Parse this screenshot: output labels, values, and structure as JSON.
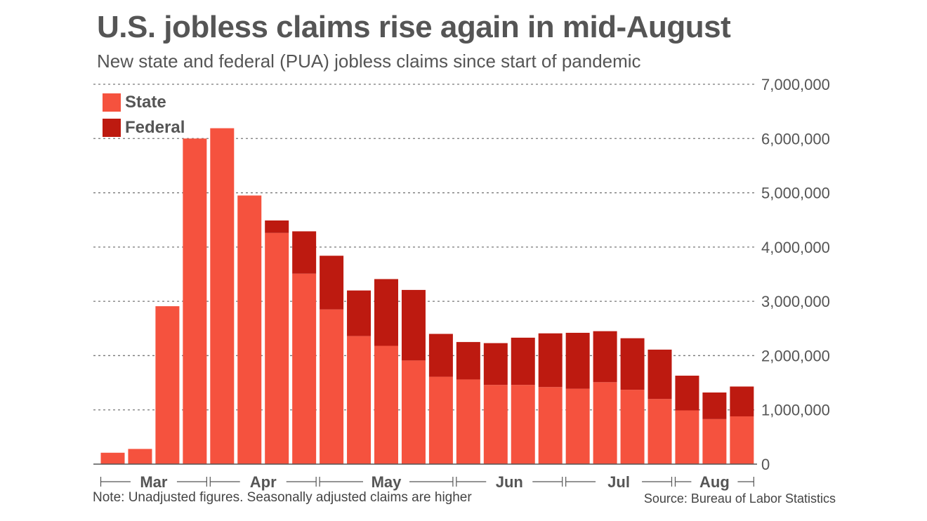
{
  "title": "U.S. jobless claims rise again in mid-August",
  "subtitle": "New state and federal (PUA) jobless claims since start of pandemic",
  "note": "Note: Unadjusted figures. Seasonally adjusted claims are higher",
  "source": "Source: Bureau of Labor Statistics",
  "chart_data": {
    "type": "bar",
    "stacked": true,
    "categories": [
      "",
      "",
      "",
      "",
      "",
      "",
      "",
      "",
      "",
      "",
      "",
      "",
      "",
      "",
      "",
      "",
      "",
      "",
      "",
      "",
      "",
      "",
      "",
      "",
      ""
    ],
    "series": [
      {
        "name": "State",
        "color": "#f5523e",
        "values": [
          210000,
          280000,
          2910000,
          6000000,
          6190000,
          4950000,
          4260000,
          3510000,
          2850000,
          2360000,
          2180000,
          1910000,
          1610000,
          1560000,
          1460000,
          1460000,
          1420000,
          1390000,
          1510000,
          1370000,
          1200000,
          990000,
          830000,
          880000,
          0
        ]
      },
      {
        "name": "Federal",
        "color": "#bd1a10",
        "values": [
          0,
          0,
          0,
          0,
          0,
          0,
          230000,
          780000,
          990000,
          840000,
          1230000,
          1300000,
          790000,
          690000,
          770000,
          870000,
          990000,
          1030000,
          940000,
          950000,
          910000,
          640000,
          490000,
          550000,
          0
        ]
      }
    ],
    "month_groups": [
      {
        "label": "Mar",
        "start": 0,
        "end": 3
      },
      {
        "label": "Apr",
        "start": 4,
        "end": 7
      },
      {
        "label": "May",
        "start": 8,
        "end": 12
      },
      {
        "label": "Jun",
        "start": 13,
        "end": 16
      },
      {
        "label": "Jul",
        "start": 17,
        "end": 20
      },
      {
        "label": "Aug",
        "start": 21,
        "end": 23
      }
    ],
    "ylim": [
      0,
      7000000
    ],
    "yticks": [
      0,
      1000000,
      2000000,
      3000000,
      4000000,
      5000000,
      6000000,
      7000000
    ],
    "ytick_labels": [
      "0",
      "1,000,000",
      "2,000,000",
      "3,000,000",
      "4,000,000",
      "5,000,000",
      "6,000,000",
      "7,000,000"
    ],
    "grid": true,
    "legend_position": "top-left"
  }
}
